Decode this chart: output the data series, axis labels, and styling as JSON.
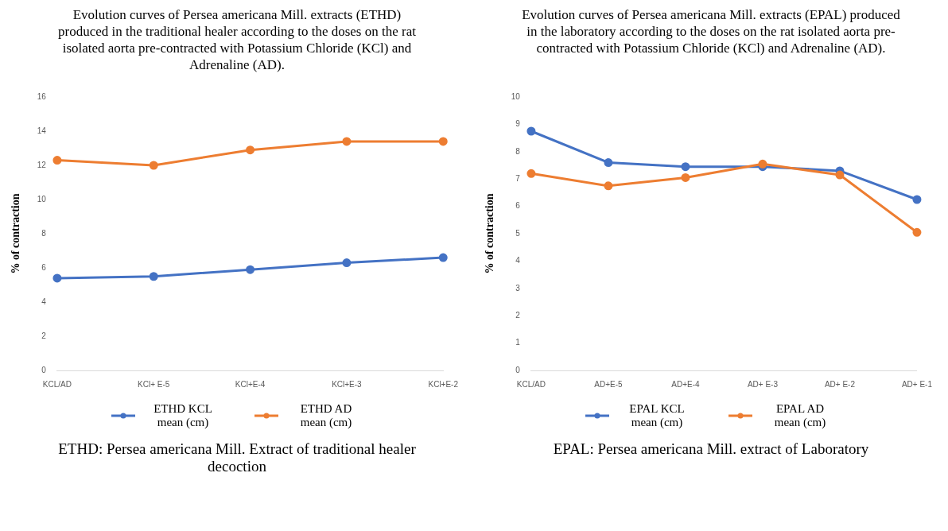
{
  "chart_data": [
    {
      "type": "line",
      "title": "Evolution curves of Persea americana Mill. extracts (ETHD) produced in the traditional healer according to the doses on the rat isolated aorta pre-contracted with Potassium Chloride (KCl) and Adrenaline (AD).",
      "ylabel": "% of contraction",
      "categories": [
        "KCL/AD",
        "KCl+ E-5",
        "KCl+E-4",
        "KCl+E-3",
        "KCl+E-2"
      ],
      "series": [
        {
          "name": "ETHD KCL mean (cm)",
          "color": "#4472c4",
          "values": [
            5.4,
            5.5,
            5.9,
            6.3,
            6.6
          ]
        },
        {
          "name": "ETHD AD mean (cm)",
          "color": "#ed7d31",
          "values": [
            12.3,
            12.0,
            12.9,
            13.4,
            13.4
          ]
        }
      ],
      "ylim": [
        0,
        16
      ],
      "yticks": [
        0,
        2,
        4,
        6,
        8,
        10,
        12,
        14,
        16
      ],
      "grid": false,
      "legend": "bottom",
      "marker": "circle",
      "line_style": "solid",
      "annotations": [
        "ETHD: Persea americana Mill. Extract of traditional healer decoction"
      ]
    },
    {
      "type": "line",
      "title": "Evolution curves of Persea americana Mill. extracts (EPAL) produced in the laboratory according to the doses on the rat isolated aorta pre-contracted with Potassium Chloride (KCl) and Adrenaline (AD).",
      "ylabel": "% of contraction",
      "categories": [
        "KCL/AD",
        "AD+E-5",
        "AD+E-4",
        "AD+ E-3",
        "AD+ E-2",
        "AD+ E-1"
      ],
      "series": [
        {
          "name": "EPAL KCL mean (cm)",
          "color": "#4472c4",
          "values": [
            8.75,
            7.6,
            7.45,
            7.45,
            7.3,
            6.25
          ]
        },
        {
          "name": "EPAL AD mean (cm)",
          "color": "#ed7d31",
          "values": [
            7.2,
            6.75,
            7.05,
            7.55,
            7.15,
            5.05
          ]
        }
      ],
      "ylim": [
        0,
        10
      ],
      "yticks": [
        0,
        1,
        2,
        3,
        4,
        5,
        6,
        7,
        8,
        9,
        10
      ],
      "grid": false,
      "legend": "bottom",
      "marker": "circle",
      "line_style": "solid",
      "annotations": [
        "EPAL: Persea americana Mill. extract of Laboratory"
      ]
    }
  ]
}
